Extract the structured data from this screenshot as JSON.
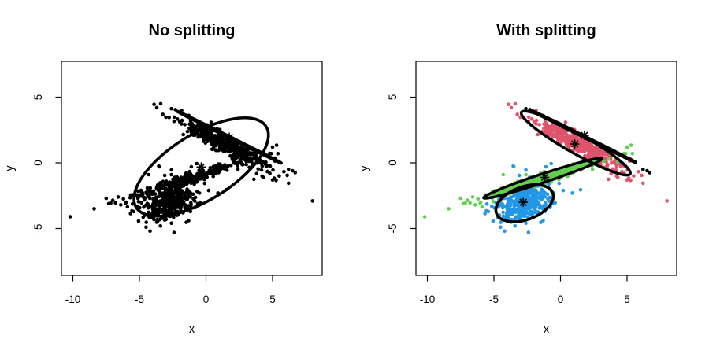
{
  "figure": {
    "background": "#FFFFFF",
    "axis_color": "#000000",
    "description": "Two R-style scatter panels comparing Gaussian mixture fits before and after component splitting"
  },
  "chart_data": {
    "type": "scatter",
    "palette": {
      "black": "#000000",
      "red": "#DF536B",
      "green": "#61D04F",
      "blue": "#2297E6"
    },
    "shared_dataset": {
      "note": "Same point cloud in both panels; left panel draws all points black, right panel colors by cluster",
      "clusters": [
        {
          "id": "upper-band",
          "color": "red",
          "n": 380,
          "center": [
            1.25,
            1.5
          ],
          "angle_deg": -30.5,
          "sd": [
            1.75,
            0.33
          ],
          "seed": 11,
          "extra_points": [
            [
              8.0,
              -2.9
            ],
            [
              6.1,
              -0.95
            ],
            [
              6.2,
              -1.55
            ],
            [
              5.5,
              -1.0
            ],
            [
              5.0,
              -1.3
            ],
            [
              4.8,
              -0.8
            ],
            [
              3.6,
              -1.25
            ],
            [
              -3.9,
              4.45
            ],
            [
              -3.7,
              4.2
            ],
            [
              -3.4,
              4.5
            ]
          ]
        },
        {
          "id": "lower-band",
          "color": "green",
          "n": 310,
          "center": [
            -1.3,
            -1.2
          ],
          "angle_deg": 18.4,
          "sd": [
            1.95,
            0.2
          ],
          "seed": 7,
          "extra_points": [
            [
              -10.2,
              -4.1
            ],
            [
              -8.4,
              -3.5
            ],
            [
              -7.5,
              -2.7
            ],
            [
              -7.3,
              -3.1
            ],
            [
              -7.0,
              -2.85
            ],
            [
              -6.8,
              -3.05
            ],
            [
              -6.6,
              -2.6
            ],
            [
              -6.4,
              -3.2
            ],
            [
              -6.2,
              -2.75
            ],
            [
              -6.0,
              -3.0
            ],
            [
              -5.9,
              -3.35
            ],
            [
              -5.7,
              -2.65
            ],
            [
              -4.3,
              -0.9
            ],
            [
              -3.5,
              -0.3
            ],
            [
              -2.6,
              -0.9
            ],
            [
              2.4,
              -0.5
            ],
            [
              3.6,
              0.3
            ],
            [
              4.3,
              0.06
            ],
            [
              4.9,
              0.7
            ],
            [
              5.0,
              1.2
            ],
            [
              5.3,
              1.35
            ],
            [
              5.4,
              0.7
            ]
          ]
        },
        {
          "id": "round-blob",
          "color": "blue",
          "n": 390,
          "center": [
            -2.7,
            -3.05
          ],
          "angle_deg": 20,
          "sd": [
            1.0,
            0.6
          ],
          "seed": 3,
          "extra_points": [
            [
              0.9,
              -2.3
            ],
            [
              0.2,
              -2.1
            ],
            [
              -0.1,
              -1.56
            ],
            [
              -0.5,
              -2.3
            ],
            [
              -0.4,
              -3.05
            ],
            [
              -0.7,
              -0.06
            ],
            [
              -1.1,
              -0.3
            ],
            [
              -3.55,
              -0.24
            ],
            [
              -2.6,
              -0.54
            ],
            [
              -3.1,
              -0.96
            ],
            [
              1.5,
              -2.05
            ],
            [
              -4.5,
              -4.9
            ],
            [
              -4.2,
              -5.2
            ],
            [
              -2.4,
              -5.3
            ],
            [
              -2.6,
              -4.6
            ],
            [
              -1.3,
              -4.4
            ]
          ]
        },
        {
          "id": "noise-black",
          "color": "black",
          "n": 0,
          "center": [
            0,
            0
          ],
          "angle_deg": 0,
          "sd": [
            0,
            0
          ],
          "seed": 1,
          "extra_points": [
            [
              -2.6,
              4.12
            ],
            [
              -2.3,
              4.05
            ],
            [
              6.2,
              -0.5
            ],
            [
              6.5,
              -0.6
            ],
            [
              6.7,
              -0.75
            ]
          ]
        }
      ]
    },
    "panels": [
      {
        "key": "no-splitting",
        "title": "No splitting",
        "xlabel": "x",
        "ylabel": "y",
        "x_tick_values": [
          -10,
          -5,
          0,
          5
        ],
        "x_tick_labels": [
          "-10",
          "-5",
          "0",
          "5"
        ],
        "y_tick_values": [
          -5,
          0,
          5
        ],
        "y_tick_labels": [
          "-5",
          "0",
          "5"
        ],
        "xlim": [
          -10.8,
          8.8
        ],
        "ylim": [
          -8.55,
          7.7
        ],
        "grid": false,
        "color_mode": "uniform-black",
        "ellipses": [
          {
            "name": "component-1-ellipse",
            "cx": -0.36,
            "cy": -0.32,
            "a": 5.75,
            "b": 2.5,
            "angle_deg": 32,
            "fill": "none",
            "stroke_width": 3.6
          },
          {
            "name": "component-2-degenerate-line",
            "cx": 1.75,
            "cy": 1.95,
            "a": 4.35,
            "b": 0.04,
            "angle_deg": -26.5,
            "fill": "none",
            "stroke_width": 4.2
          }
        ],
        "centers": [
          [
            -0.36,
            -0.32
          ],
          [
            1.75,
            1.95
          ]
        ]
      },
      {
        "key": "with-splitting",
        "title": "With splitting",
        "xlabel": "x",
        "ylabel": "y",
        "x_tick_values": [
          -10,
          -5,
          0,
          5
        ],
        "x_tick_labels": [
          "-10",
          "-5",
          "0",
          "5"
        ],
        "y_tick_values": [
          -5,
          0,
          5
        ],
        "y_tick_labels": [
          "-5",
          "0",
          "5"
        ],
        "xlim": [
          -10.8,
          8.8
        ],
        "ylim": [
          -8.55,
          7.7
        ],
        "grid": false,
        "color_mode": "by-cluster",
        "ellipses": [
          {
            "name": "green-cluster-ellipse",
            "cx": -1.32,
            "cy": -1.17,
            "a": 4.7,
            "b": 0.33,
            "angle_deg": 18.4,
            "fill": "green",
            "stroke_width": 3.4
          },
          {
            "name": "blue-cluster-ellipse",
            "cx": -2.7,
            "cy": -3.08,
            "a": 2.25,
            "b": 1.25,
            "angle_deg": 20,
            "fill": "none",
            "stroke_width": 3.6
          },
          {
            "name": "red-cluster-ellipse",
            "cx": 1.15,
            "cy": 1.5,
            "a": 4.7,
            "b": 0.75,
            "angle_deg": -29.6,
            "fill": "none",
            "stroke_width": 3.6
          },
          {
            "name": "black-degenerate-line",
            "cx": 1.75,
            "cy": 2.0,
            "a": 4.35,
            "b": 0.04,
            "angle_deg": -26.5,
            "fill": "none",
            "stroke_width": 4.2
          }
        ],
        "centers": [
          [
            -2.8,
            -3.0
          ],
          [
            -1.18,
            -1.1
          ],
          [
            1.07,
            1.44
          ],
          [
            1.8,
            2.1
          ]
        ]
      }
    ]
  }
}
